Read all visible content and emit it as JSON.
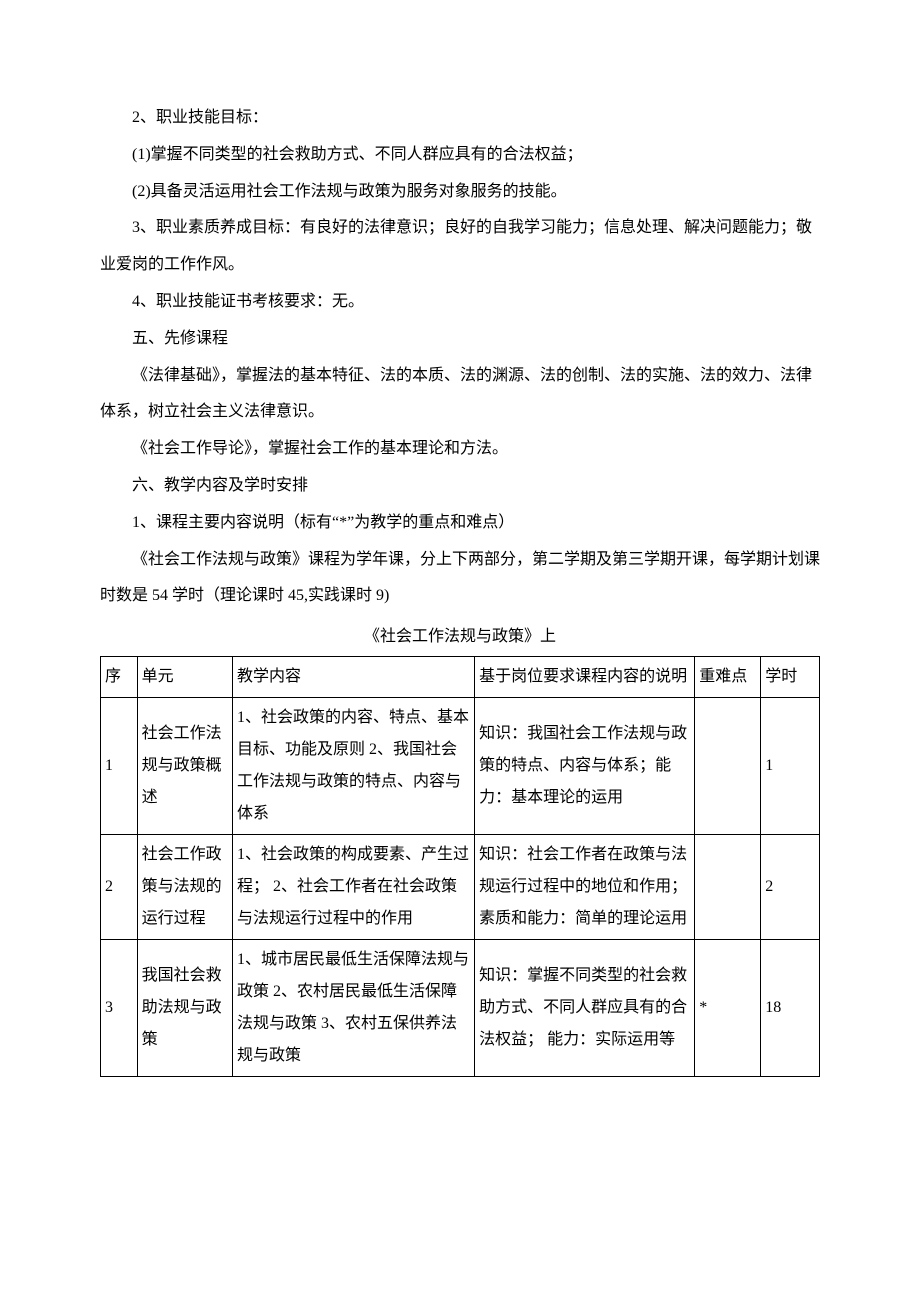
{
  "paragraphs": {
    "p1": "2、职业技能目标：",
    "p2": "(1)掌握不同类型的社会救助方式、不同人群应具有的合法权益；",
    "p3": "(2)具备灵活运用社会工作法规与政策为服务对象服务的技能。",
    "p4": "3、职业素质养成目标：有良好的法律意识；良好的自我学习能力；信息处理、解决问题能力；敬业爱岗的工作作风。",
    "p5": "4、职业技能证书考核要求：无。",
    "p6": "五、先修课程",
    "p7": "《法律基础》，掌握法的基本特征、法的本质、法的渊源、法的创制、法的实施、法的效力、法律体系，树立社会主义法律意识。",
    "p8": "《社会工作导论》，掌握社会工作的基本理论和方法。",
    "p9": "六、教学内容及学时安排",
    "p10": "1、课程主要内容说明（标有“*”为教学的重点和难点）",
    "p11": "《社会工作法规与政策》课程为学年课，分上下两部分，第二学期及第三学期开课，每学期计划课时数是 54 学时（理论课时 45,实践课时 9)"
  },
  "table_title": "《社会工作法规与政策》上",
  "headers": {
    "seq": "序",
    "unit": "单元",
    "content": "教学内容",
    "desc": "基于岗位要求课程内容的说明",
    "diff": "重难点",
    "hours": "学时"
  },
  "rows": [
    {
      "seq": "1",
      "unit": "社会工作法规与政策概述",
      "content": "1、社会政策的内容、特点、基本目标、功能及原则\n2、我国社会工作法规与政策的特点、内容与体系",
      "desc": "知识：我国社会工作法规与政策的特点、内容与体系；能力：基本理论的运用",
      "diff": "",
      "hours": "1"
    },
    {
      "seq": "2",
      "unit": "社会工作政策与法规的运行过程",
      "content": "1、社会政策的构成要素、产生过程；\n2、社会工作者在社会政策与法规运行过程中的作用",
      "desc": "知识：社会工作者在政策与法规运行过程中的地位和作用；素质和能力：简单的理论运用",
      "diff": "",
      "hours": "2"
    },
    {
      "seq": "3",
      "unit": "我国社会救助法规与政策",
      "content": "1、城市居民最低生活保障法规与政策\n2、农村居民最低生活保障法规与政策\n3、农村五保供养法规与政策",
      "desc": "知识：掌握不同类型的社会救助方式、不同人群应具有的合法权益；\n能力：实际运用等",
      "diff": "*",
      "hours": "18"
    }
  ]
}
